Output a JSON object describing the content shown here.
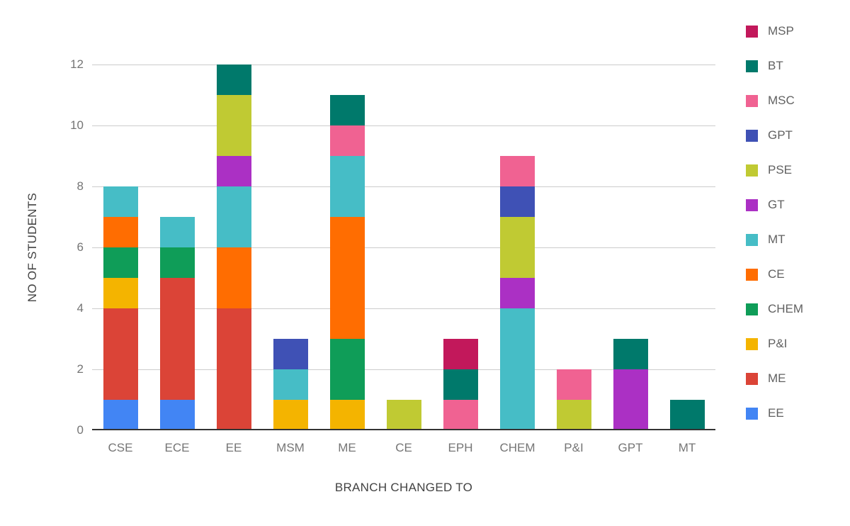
{
  "chart_data": {
    "type": "bar",
    "stacked": true,
    "title": "",
    "xlabel": "BRANCH CHANGED TO",
    "ylabel": "NO OF STUDENTS",
    "ylim": [
      0,
      12
    ],
    "yticks": [
      0,
      2,
      4,
      6,
      8,
      10,
      12
    ],
    "grid": true,
    "legend_position": "right",
    "categories": [
      "CSE",
      "ECE",
      "EE",
      "MSM",
      "ME",
      "CE",
      "EPH",
      "CHEM",
      "P&I",
      "GPT",
      "MT"
    ],
    "series": [
      {
        "name": "EE",
        "color": "#4285F4",
        "values": [
          1,
          1,
          0,
          0,
          0,
          0,
          0,
          0,
          0,
          0,
          0
        ]
      },
      {
        "name": "ME",
        "color": "#DB4437",
        "values": [
          3,
          4,
          4,
          0,
          0,
          0,
          0,
          0,
          0,
          0,
          0
        ]
      },
      {
        "name": "P&I",
        "color": "#F4B400",
        "values": [
          1,
          0,
          0,
          1,
          1,
          0,
          0,
          0,
          0,
          0,
          0
        ]
      },
      {
        "name": "CHEM",
        "color": "#0F9D58",
        "values": [
          1,
          1,
          0,
          0,
          2,
          0,
          0,
          0,
          0,
          0,
          0
        ]
      },
      {
        "name": "CE",
        "color": "#FF6D01",
        "values": [
          1,
          0,
          2,
          0,
          4,
          0,
          0,
          0,
          0,
          0,
          0
        ]
      },
      {
        "name": "MT",
        "color": "#46BDC6",
        "values": [
          1,
          1,
          2,
          1,
          2,
          0,
          0,
          4,
          0,
          0,
          0
        ]
      },
      {
        "name": "GT",
        "color": "#AB30C4",
        "values": [
          0,
          0,
          1,
          0,
          0,
          0,
          0,
          1,
          0,
          2,
          0
        ]
      },
      {
        "name": "PSE",
        "color": "#C0CA33",
        "values": [
          0,
          0,
          2,
          0,
          0,
          1,
          0,
          2,
          1,
          0,
          0
        ]
      },
      {
        "name": "GPT",
        "color": "#3F51B5",
        "values": [
          0,
          0,
          0,
          1,
          0,
          0,
          0,
          1,
          0,
          0,
          0
        ]
      },
      {
        "name": "MSC",
        "color": "#F06292",
        "values": [
          0,
          0,
          0,
          0,
          1,
          0,
          1,
          1,
          1,
          0,
          0
        ]
      },
      {
        "name": "BT",
        "color": "#00796B",
        "values": [
          0,
          0,
          1,
          0,
          1,
          0,
          1,
          0,
          0,
          1,
          1
        ]
      },
      {
        "name": "MSP",
        "color": "#C2185B",
        "values": [
          0,
          0,
          0,
          0,
          0,
          0,
          1,
          0,
          0,
          0,
          0
        ]
      }
    ],
    "legend_order": [
      "MSP",
      "BT",
      "MSC",
      "GPT",
      "PSE",
      "GT",
      "MT",
      "CE",
      "CHEM",
      "P&I",
      "ME",
      "EE"
    ]
  }
}
